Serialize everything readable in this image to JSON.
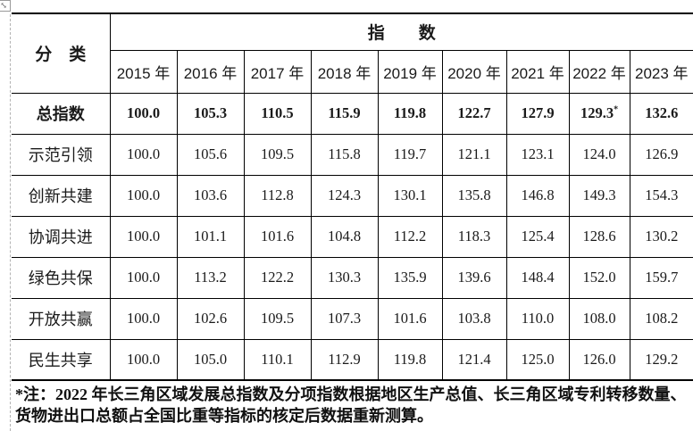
{
  "page": {
    "background": "#ffffff",
    "border_color": "#000000",
    "gridline_color": "#b3b3b3",
    "text_color": "#1a1a1a"
  },
  "icons": {
    "move_handle": "⤡"
  },
  "table": {
    "corner_header": "分　类",
    "group_header": "指　　数",
    "years": [
      "2015 年",
      "2016 年",
      "2017 年",
      "2018 年",
      "2019 年",
      "2020 年",
      "2021 年",
      "2022 年",
      "2023 年"
    ],
    "rows": [
      {
        "label": "总指数",
        "bold": true,
        "values": [
          "100.0",
          "105.3",
          "110.5",
          "115.9",
          "119.8",
          "122.7",
          "127.9",
          "129.3*",
          "132.6"
        ]
      },
      {
        "label": "示范引领",
        "bold": false,
        "values": [
          "100.0",
          "105.6",
          "109.5",
          "115.8",
          "119.7",
          "121.1",
          "123.1",
          "124.0",
          "126.9"
        ]
      },
      {
        "label": "创新共建",
        "bold": false,
        "values": [
          "100.0",
          "103.6",
          "112.8",
          "124.3",
          "130.1",
          "135.8",
          "146.8",
          "149.3",
          "154.3"
        ]
      },
      {
        "label": "协调共进",
        "bold": false,
        "values": [
          "100.0",
          "101.1",
          "101.6",
          "104.8",
          "112.2",
          "118.3",
          "125.4",
          "128.6",
          "130.2"
        ]
      },
      {
        "label": "绿色共保",
        "bold": false,
        "values": [
          "100.0",
          "113.2",
          "122.2",
          "130.3",
          "135.9",
          "139.6",
          "148.4",
          "152.0",
          "159.7"
        ]
      },
      {
        "label": "开放共赢",
        "bold": false,
        "values": [
          "100.0",
          "102.6",
          "109.5",
          "107.3",
          "101.6",
          "103.8",
          "110.0",
          "108.0",
          "108.2"
        ]
      },
      {
        "label": "民生共享",
        "bold": false,
        "values": [
          "100.0",
          "105.0",
          "110.1",
          "112.9",
          "119.8",
          "121.4",
          "125.0",
          "126.0",
          "129.2"
        ]
      }
    ]
  },
  "footnote": {
    "line1": "*注：2022 年长三角区域发展总指数及分项指数根据地区生产总值、长三角区域专利转移数量、",
    "line2": "货物进出口总额占全国比重等指标的核定后数据重新测算。"
  }
}
